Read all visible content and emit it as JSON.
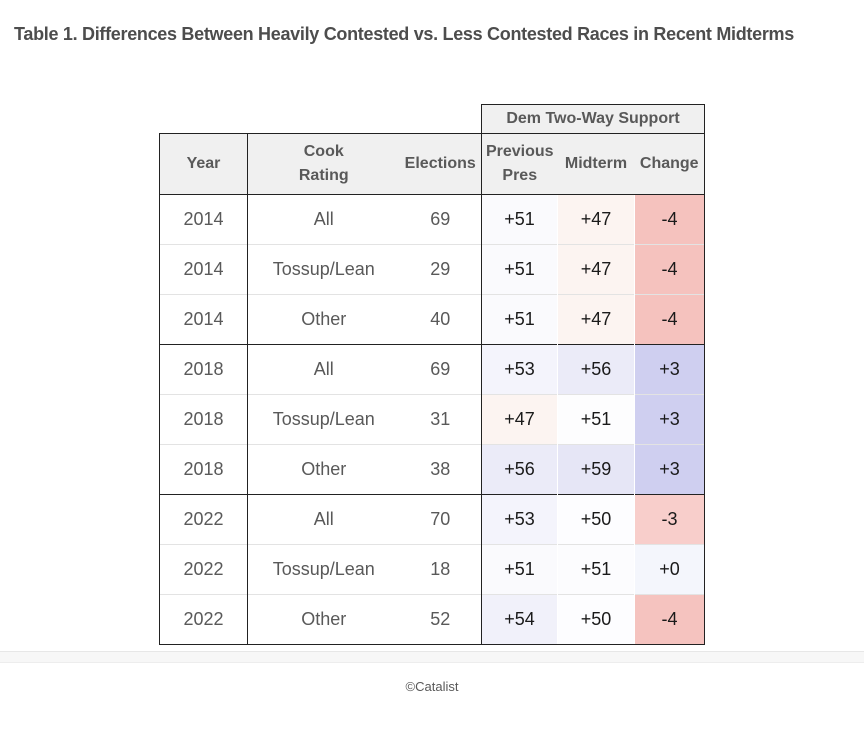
{
  "title": "Table 1. Differences Between Heavily Contested vs. Less Contested Races in Recent Midterms",
  "table": {
    "span_header": "Dem Two-Way Support",
    "columns": {
      "year": "Year",
      "cook_rating": "Cook Rating",
      "elections": "Elections",
      "previous_pres": "Previous Pres",
      "midterm": "Midterm",
      "change": "Change"
    }
  },
  "chart_data": {
    "type": "table",
    "title": "Table 1. Differences Between Heavily Contested vs. Less Contested Races in Recent Midterms",
    "column_group": {
      "label": "Dem Two-Way Support",
      "applies_to": [
        "Previous Pres",
        "Midterm",
        "Change"
      ]
    },
    "columns": [
      "Year",
      "Cook Rating",
      "Elections",
      "Previous Pres",
      "Midterm",
      "Change"
    ],
    "rows": [
      {
        "year": "2014",
        "cook_rating": "All",
        "elections": "69",
        "previous_pres": "+51",
        "midterm": "+47",
        "change": "-4",
        "colors": {
          "previous_pres": "#fafafd",
          "midterm": "#fcf4f1",
          "change": "#f5c2be"
        }
      },
      {
        "year": "2014",
        "cook_rating": "Tossup/Lean",
        "elections": "29",
        "previous_pres": "+51",
        "midterm": "+47",
        "change": "-4",
        "colors": {
          "previous_pres": "#fafafd",
          "midterm": "#fcf4f1",
          "change": "#f5c2be"
        }
      },
      {
        "year": "2014",
        "cook_rating": "Other",
        "elections": "40",
        "previous_pres": "+51",
        "midterm": "+47",
        "change": "-4",
        "colors": {
          "previous_pres": "#fafafd",
          "midterm": "#fcf4f1",
          "change": "#f5c2be"
        }
      },
      {
        "year": "2018",
        "cook_rating": "All",
        "elections": "69",
        "previous_pres": "+53",
        "midterm": "+56",
        "change": "+3",
        "colors": {
          "previous_pres": "#f4f4fc",
          "midterm": "#ebebf8",
          "change": "#cfcff0"
        }
      },
      {
        "year": "2018",
        "cook_rating": "Tossup/Lean",
        "elections": "31",
        "previous_pres": "+47",
        "midterm": "+51",
        "change": "+3",
        "colors": {
          "previous_pres": "#fcf4f1",
          "midterm": "#fdfdfe",
          "change": "#cfcff0"
        }
      },
      {
        "year": "2018",
        "cook_rating": "Other",
        "elections": "38",
        "previous_pres": "+56",
        "midterm": "+59",
        "change": "+3",
        "colors": {
          "previous_pres": "#ebebf8",
          "midterm": "#e6e6f6",
          "change": "#cfcff0"
        }
      },
      {
        "year": "2022",
        "cook_rating": "All",
        "elections": "70",
        "previous_pres": "+53",
        "midterm": "+50",
        "change": "-3",
        "colors": {
          "previous_pres": "#f4f4fc",
          "midterm": "#fdfdff",
          "change": "#f8cecb"
        }
      },
      {
        "year": "2022",
        "cook_rating": "Tossup/Lean",
        "elections": "18",
        "previous_pres": "+51",
        "midterm": "+51",
        "change": "+0",
        "colors": {
          "previous_pres": "#fafafd",
          "midterm": "#fcfcfe",
          "change": "#f4f6fc"
        }
      },
      {
        "year": "2022",
        "cook_rating": "Other",
        "elections": "52",
        "previous_pres": "+54",
        "midterm": "+50",
        "change": "-4",
        "colors": {
          "previous_pres": "#f1f1fa",
          "midterm": "#fdfdff",
          "change": "#f5c3bf"
        }
      }
    ],
    "style": {
      "positive_change_color": "#cfcff0",
      "negative_change_color": "#f5c2be",
      "header_bg": "#f0f0f0",
      "header_text": "#595959",
      "group_border": "#222222"
    }
  },
  "footer": {
    "credit": "©Catalist"
  }
}
